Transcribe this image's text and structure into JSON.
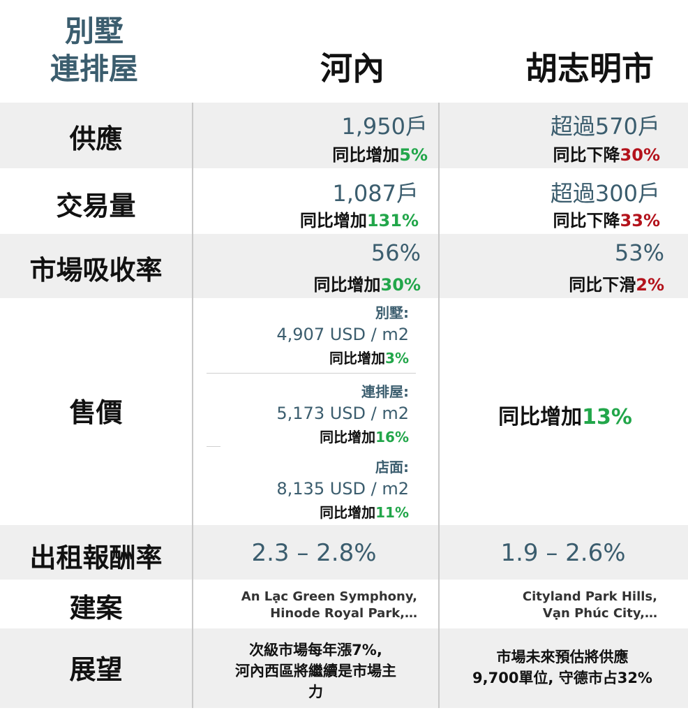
{
  "header": {
    "category_line1": "別墅",
    "category_line2": "連排屋",
    "col_hanoi": "河內",
    "col_hcmc": "胡志明市"
  },
  "rows": {
    "supply": {
      "label": "供應",
      "hanoi_value": "1,950戶",
      "hanoi_change_prefix": "同比增加",
      "hanoi_change_value": "5%",
      "hcmc_value": "超過570戶",
      "hcmc_change_prefix": "同比下降",
      "hcmc_change_value": "30%"
    },
    "transactions": {
      "label": "交易量",
      "hanoi_value": "1,087戶",
      "hanoi_change_prefix": "同比增加",
      "hanoi_change_value": "131%",
      "hcmc_value": "超過300戶",
      "hcmc_change_prefix": "同比下降",
      "hcmc_change_value": "33%"
    },
    "absorption": {
      "label": "市場吸收率",
      "hanoi_value": "56%",
      "hanoi_change_prefix": "同比增加",
      "hanoi_change_value": "30%",
      "hcmc_value": "53%",
      "hcmc_change_prefix": "同比下滑",
      "hcmc_change_value": "2%"
    },
    "price": {
      "label": "售價",
      "hanoi": [
        {
          "type": "別墅:",
          "value": "4,907 USD / m2",
          "change_prefix": "同比增加",
          "change_value": "3%"
        },
        {
          "type": "連排屋:",
          "value": "5,173 USD / m2",
          "change_prefix": "同比增加",
          "change_value": "16%"
        },
        {
          "type": "店面:",
          "value": "8,135 USD / m2",
          "change_prefix": "同比增加",
          "change_value": "11%"
        }
      ],
      "hcmc_change_prefix": "同比增加",
      "hcmc_change_value": "13%"
    },
    "rental_yield": {
      "label": "出租報酬率",
      "hanoi_value": "2.3 – 2.8%",
      "hcmc_value": "1.9 – 2.6%"
    },
    "projects": {
      "label": "建案",
      "hanoi_line1": "An Lạc Green Symphony,",
      "hanoi_line2": "Hinode Royal Park,…",
      "hcmc_line1": "Cityland Park Hills,",
      "hcmc_line2": "Vạn Phúc City,…"
    },
    "outlook": {
      "label": "展望",
      "hanoi_line1": "次級市場每年漲7%,",
      "hanoi_line2": "河內西區將繼續是市場主",
      "hanoi_line3": "力",
      "hcmc_line1": "市場未來預估將供應",
      "hcmc_line2": "9,700單位, 守德市占32%"
    }
  }
}
